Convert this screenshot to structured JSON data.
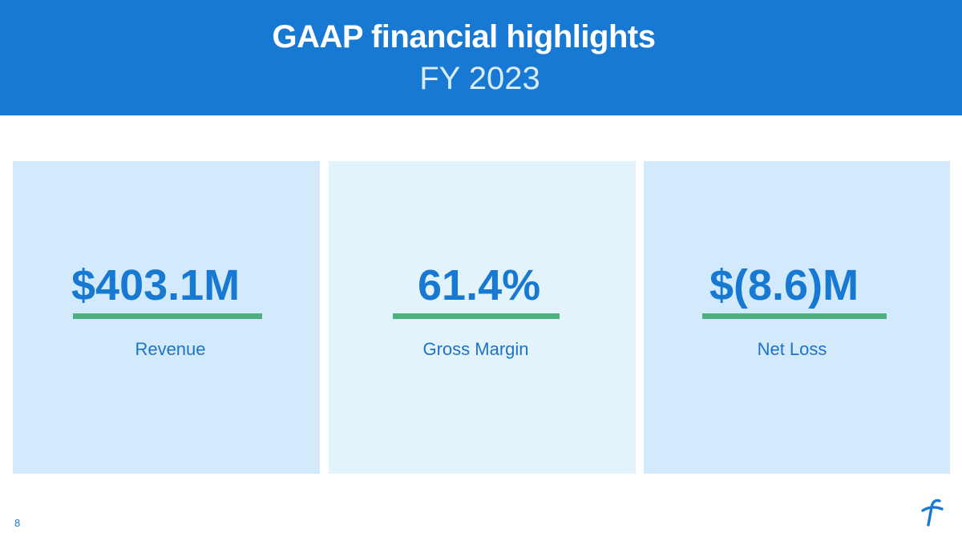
{
  "header": {
    "title": "GAAP financial highlights",
    "subtitle": "FY 2023"
  },
  "metrics": [
    {
      "value": "$403.1M",
      "label": "Revenue"
    },
    {
      "value": "61.4%",
      "label": "Gross Margin"
    },
    {
      "value": "$(8.6)M",
      "label": "Net Loss"
    }
  ],
  "footer": {
    "page_number": "8",
    "logo_icon": "brand-f-logo-icon"
  },
  "colors": {
    "header_bg": "#1779d2",
    "accent_blue": "#1779d2",
    "underline_green": "#4fb07f",
    "card_light": "#d3e9fc",
    "card_lighter": "#e3f3fc"
  }
}
